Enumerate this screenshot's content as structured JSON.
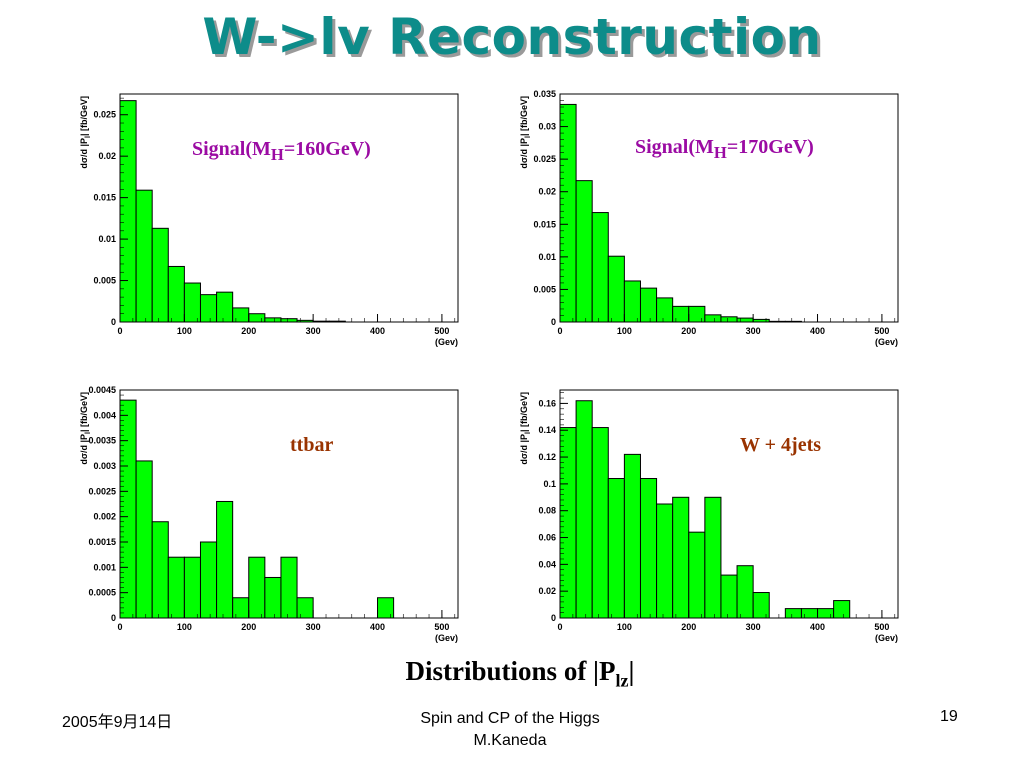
{
  "slide": {
    "title": "W->lv Reconstruction",
    "caption_main": "Distributions of |P",
    "caption_sub": "lz",
    "caption_end": "|",
    "footer_date": "2005年9月14日",
    "footer_title": "Spin and CP of the Higgs",
    "footer_author": "M.Kaneda",
    "page_number": "19"
  },
  "colors": {
    "title": "#0d8c8a",
    "bar_fill": "#00ff00",
    "signal_label": "#9b0ba3",
    "background_label": "#993300"
  },
  "chart_data": [
    {
      "type": "bar",
      "histogram": true,
      "panel_label": "Signal(M",
      "panel_label_sub": "H",
      "panel_label_end": "=160GeV)",
      "ylabel": "dσ/d |P",
      "ylabel_sub": "l",
      "ylabel_end": "| [fb/GeV]",
      "xlabel": "(Gev)",
      "bin_width": 25,
      "xlim": [
        0,
        525
      ],
      "ylim": [
        0,
        0.0275
      ],
      "xticks": [
        "0",
        "100",
        "200",
        "300",
        "400",
        "500"
      ],
      "yticks": [
        "0",
        "0.005",
        "0.01",
        "0.015",
        "0.02",
        "0.025"
      ],
      "values": [
        0.0267,
        0.0159,
        0.0113,
        0.0067,
        0.0047,
        0.0033,
        0.0036,
        0.0017,
        0.001,
        0.0005,
        0.0004,
        0.0002,
        0.0001,
        0.0001,
        0,
        0,
        0,
        0,
        0,
        0
      ]
    },
    {
      "type": "bar",
      "histogram": true,
      "panel_label": "Signal(M",
      "panel_label_sub": "H",
      "panel_label_end": "=170GeV)",
      "ylabel": "dσ/d |P",
      "ylabel_sub": "l",
      "ylabel_end": "| [fb/GeV]",
      "xlabel": "(Gev)",
      "bin_width": 25,
      "xlim": [
        0,
        525
      ],
      "ylim": [
        0,
        0.035
      ],
      "xticks": [
        "0",
        "100",
        "200",
        "300",
        "400",
        "500"
      ],
      "yticks": [
        "0",
        "0.005",
        "0.01",
        "0.015",
        "0.02",
        "0.025",
        "0.03",
        "0.035"
      ],
      "values": [
        0.0334,
        0.0217,
        0.0168,
        0.0101,
        0.0063,
        0.0052,
        0.0037,
        0.0024,
        0.0024,
        0.0011,
        0.0008,
        0.0006,
        0.0004,
        0.0001,
        0.0001,
        0,
        0,
        0,
        0,
        0
      ]
    },
    {
      "type": "bar",
      "histogram": true,
      "panel_label": "ttbar",
      "ylabel": "dσ/d |P",
      "ylabel_sub": "l",
      "ylabel_end": "| [fb/GeV]",
      "xlabel": "(Gev)",
      "bin_width": 25,
      "xlim": [
        0,
        525
      ],
      "ylim": [
        0,
        0.0045
      ],
      "xticks": [
        "0",
        "100",
        "200",
        "300",
        "400",
        "500"
      ],
      "yticks": [
        "0",
        "0.0005",
        "0.001",
        "0.0015",
        "0.002",
        "0.0025",
        "0.003",
        "0.0035",
        "0.004",
        "0.0045"
      ],
      "values": [
        0.0043,
        0.0031,
        0.0019,
        0.0012,
        0.0012,
        0.0015,
        0.0023,
        0.0004,
        0.0012,
        0.0008,
        0.0012,
        0.0004,
        0,
        0,
        0,
        0,
        0.0004,
        0,
        0,
        0
      ]
    },
    {
      "type": "bar",
      "histogram": true,
      "panel_label": "W + 4jets",
      "ylabel": "dσ/d |P",
      "ylabel_sub": "l",
      "ylabel_end": "| [fb/GeV]",
      "xlabel": "(Gev)",
      "bin_width": 25,
      "xlim": [
        0,
        525
      ],
      "ylim": [
        0,
        0.17
      ],
      "xticks": [
        "0",
        "100",
        "200",
        "300",
        "400",
        "500"
      ],
      "yticks": [
        "0",
        "0.02",
        "0.04",
        "0.06",
        "0.08",
        "0.1",
        "0.12",
        "0.14",
        "0.16"
      ],
      "values": [
        0.142,
        0.162,
        0.142,
        0.104,
        0.122,
        0.104,
        0.085,
        0.09,
        0.064,
        0.09,
        0.032,
        0.039,
        0.019,
        0,
        0.007,
        0.007,
        0.007,
        0.013,
        0,
        0
      ]
    }
  ]
}
